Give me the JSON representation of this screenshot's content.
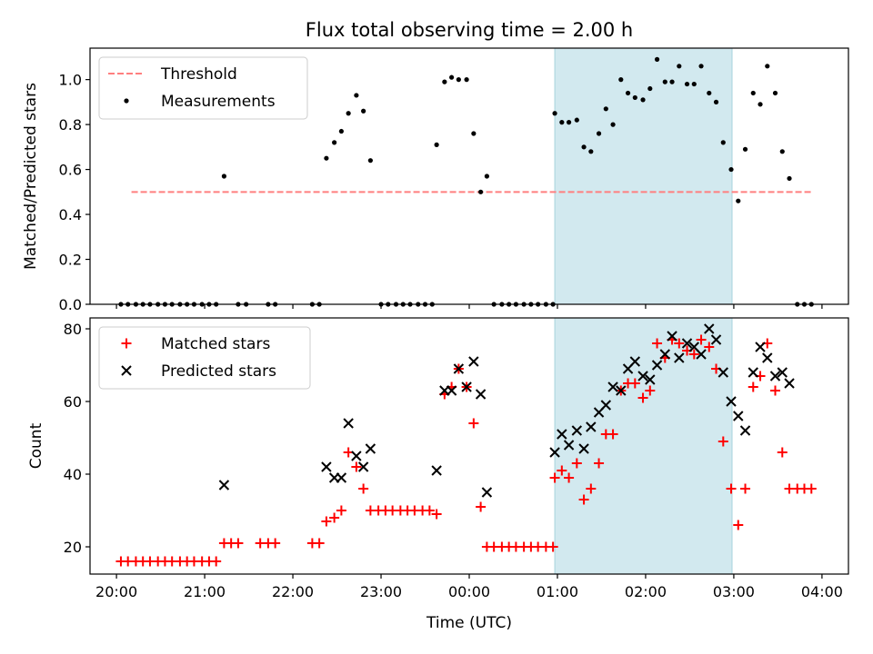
{
  "chart_data": [
    {
      "type": "scatter",
      "title": "Flux total observing time = 2.00 h",
      "ylabel": "Matched/Predicted stars",
      "xlabel": "",
      "x_unit": "hours since 20:00 UTC",
      "xlim": [
        -0.3,
        8.3
      ],
      "ylim": [
        0,
        1.14
      ],
      "yticks": [
        0.0,
        0.2,
        0.4,
        0.6,
        0.8,
        1.0
      ],
      "ytick_labels": [
        "0.0",
        "0.2",
        "0.4",
        "0.6",
        "0.8",
        "1.0"
      ],
      "highlight": {
        "x0": 4.97,
        "x1": 6.98,
        "color": "#d2e9ef"
      },
      "threshold": {
        "name": "Threshold",
        "value": 0.5,
        "x0": 0.17,
        "x1": 7.9,
        "color": "#ff7f7f"
      },
      "legend": {
        "position": "top-left",
        "entries": [
          "Threshold",
          "Measurements"
        ]
      },
      "series": [
        {
          "name": "Measurements",
          "color": "#000000",
          "points": [
            [
              0.05,
              0
            ],
            [
              0.13,
              0
            ],
            [
              0.22,
              0
            ],
            [
              0.3,
              0
            ],
            [
              0.38,
              0
            ],
            [
              0.47,
              0
            ],
            [
              0.55,
              0
            ],
            [
              0.63,
              0
            ],
            [
              0.72,
              0
            ],
            [
              0.8,
              0
            ],
            [
              0.88,
              0
            ],
            [
              0.97,
              0
            ],
            [
              1.05,
              0
            ],
            [
              1.13,
              0
            ],
            [
              1.22,
              0.57
            ],
            [
              1.38,
              0
            ],
            [
              1.47,
              0
            ],
            [
              1.72,
              0
            ],
            [
              1.8,
              0
            ],
            [
              2.22,
              0
            ],
            [
              2.3,
              0
            ],
            [
              2.38,
              0.65
            ],
            [
              2.47,
              0.72
            ],
            [
              2.55,
              0.77
            ],
            [
              2.63,
              0.85
            ],
            [
              2.72,
              0.93
            ],
            [
              2.8,
              0.86
            ],
            [
              2.88,
              0.64
            ],
            [
              3.0,
              0
            ],
            [
              3.08,
              0
            ],
            [
              3.17,
              0
            ],
            [
              3.25,
              0
            ],
            [
              3.33,
              0
            ],
            [
              3.42,
              0
            ],
            [
              3.5,
              0
            ],
            [
              3.58,
              0
            ],
            [
              3.63,
              0.71
            ],
            [
              3.72,
              0.99
            ],
            [
              3.8,
              1.01
            ],
            [
              3.88,
              1.0
            ],
            [
              3.97,
              1.0
            ],
            [
              4.05,
              0.76
            ],
            [
              4.13,
              0.5
            ],
            [
              4.2,
              0.57
            ],
            [
              4.28,
              0
            ],
            [
              4.37,
              0
            ],
            [
              4.45,
              0
            ],
            [
              4.53,
              0
            ],
            [
              4.62,
              0
            ],
            [
              4.7,
              0
            ],
            [
              4.78,
              0
            ],
            [
              4.87,
              0
            ],
            [
              4.95,
              0
            ],
            [
              4.97,
              0.85
            ],
            [
              5.05,
              0.81
            ],
            [
              5.13,
              0.81
            ],
            [
              5.22,
              0.82
            ],
            [
              5.3,
              0.7
            ],
            [
              5.38,
              0.68
            ],
            [
              5.47,
              0.76
            ],
            [
              5.55,
              0.87
            ],
            [
              5.63,
              0.8
            ],
            [
              5.72,
              1.0
            ],
            [
              5.8,
              0.94
            ],
            [
              5.88,
              0.92
            ],
            [
              5.97,
              0.91
            ],
            [
              6.05,
              0.96
            ],
            [
              6.13,
              1.09
            ],
            [
              6.22,
              0.99
            ],
            [
              6.3,
              0.99
            ],
            [
              6.38,
              1.06
            ],
            [
              6.47,
              0.98
            ],
            [
              6.55,
              0.98
            ],
            [
              6.63,
              1.06
            ],
            [
              6.72,
              0.94
            ],
            [
              6.8,
              0.9
            ],
            [
              6.88,
              0.72
            ],
            [
              6.97,
              0.6
            ],
            [
              7.05,
              0.46
            ],
            [
              7.13,
              0.69
            ],
            [
              7.22,
              0.94
            ],
            [
              7.3,
              0.89
            ],
            [
              7.38,
              1.06
            ],
            [
              7.47,
              0.94
            ],
            [
              7.55,
              0.68
            ],
            [
              7.63,
              0.56
            ],
            [
              7.72,
              0
            ],
            [
              7.8,
              0
            ],
            [
              7.88,
              0
            ]
          ]
        }
      ]
    },
    {
      "type": "scatter",
      "title": "",
      "ylabel": "Count",
      "xlabel": "Time (UTC)",
      "x_unit": "hours since 20:00 UTC",
      "xlim": [
        -0.3,
        8.3
      ],
      "ylim": [
        12.5,
        83
      ],
      "yticks": [
        20,
        40,
        60,
        80
      ],
      "ytick_labels": [
        "20",
        "40",
        "60",
        "80"
      ],
      "xticks": [
        0,
        1,
        2,
        3,
        4,
        5,
        6,
        7,
        8
      ],
      "xtick_labels": [
        "20:00",
        "21:00",
        "22:00",
        "23:00",
        "00:00",
        "01:00",
        "02:00",
        "03:00",
        "04:00"
      ],
      "highlight": {
        "x0": 4.97,
        "x1": 6.98,
        "color": "#d2e9ef"
      },
      "legend": {
        "position": "top-left",
        "entries": [
          "Matched stars",
          "Predicted stars"
        ]
      },
      "series": [
        {
          "name": "Matched stars",
          "marker": "plus",
          "color": "#ff0000",
          "points": [
            [
              0.05,
              16
            ],
            [
              0.13,
              16
            ],
            [
              0.22,
              16
            ],
            [
              0.3,
              16
            ],
            [
              0.38,
              16
            ],
            [
              0.47,
              16
            ],
            [
              0.55,
              16
            ],
            [
              0.63,
              16
            ],
            [
              0.72,
              16
            ],
            [
              0.8,
              16
            ],
            [
              0.88,
              16
            ],
            [
              0.97,
              16
            ],
            [
              1.05,
              16
            ],
            [
              1.13,
              16
            ],
            [
              1.22,
              21
            ],
            [
              1.3,
              21
            ],
            [
              1.38,
              21
            ],
            [
              1.63,
              21
            ],
            [
              1.72,
              21
            ],
            [
              1.8,
              21
            ],
            [
              2.22,
              21
            ],
            [
              2.3,
              21
            ],
            [
              2.38,
              27
            ],
            [
              2.47,
              28
            ],
            [
              2.55,
              30
            ],
            [
              2.63,
              46
            ],
            [
              2.72,
              42
            ],
            [
              2.8,
              36
            ],
            [
              2.88,
              30
            ],
            [
              2.97,
              30
            ],
            [
              3.05,
              30
            ],
            [
              3.13,
              30
            ],
            [
              3.22,
              30
            ],
            [
              3.3,
              30
            ],
            [
              3.38,
              30
            ],
            [
              3.47,
              30
            ],
            [
              3.55,
              30
            ],
            [
              3.63,
              29
            ],
            [
              3.72,
              62
            ],
            [
              3.8,
              64
            ],
            [
              3.88,
              69
            ],
            [
              3.97,
              64
            ],
            [
              4.05,
              54
            ],
            [
              4.13,
              31
            ],
            [
              4.2,
              20
            ],
            [
              4.28,
              20
            ],
            [
              4.37,
              20
            ],
            [
              4.45,
              20
            ],
            [
              4.53,
              20
            ],
            [
              4.62,
              20
            ],
            [
              4.7,
              20
            ],
            [
              4.78,
              20
            ],
            [
              4.87,
              20
            ],
            [
              4.95,
              20
            ],
            [
              4.97,
              39
            ],
            [
              5.05,
              41
            ],
            [
              5.13,
              39
            ],
            [
              5.22,
              43
            ],
            [
              5.3,
              33
            ],
            [
              5.38,
              36
            ],
            [
              5.47,
              43
            ],
            [
              5.55,
              51
            ],
            [
              5.63,
              51
            ],
            [
              5.72,
              63
            ],
            [
              5.8,
              65
            ],
            [
              5.88,
              65
            ],
            [
              5.97,
              61
            ],
            [
              6.05,
              63
            ],
            [
              6.13,
              76
            ],
            [
              6.22,
              72
            ],
            [
              6.3,
              77
            ],
            [
              6.38,
              76
            ],
            [
              6.47,
              74
            ],
            [
              6.55,
              73
            ],
            [
              6.63,
              77
            ],
            [
              6.72,
              75
            ],
            [
              6.8,
              69
            ],
            [
              6.88,
              49
            ],
            [
              6.97,
              36
            ],
            [
              7.05,
              26
            ],
            [
              7.13,
              36
            ],
            [
              7.22,
              64
            ],
            [
              7.3,
              67
            ],
            [
              7.38,
              76
            ],
            [
              7.47,
              63
            ],
            [
              7.55,
              46
            ],
            [
              7.63,
              36
            ],
            [
              7.72,
              36
            ],
            [
              7.8,
              36
            ],
            [
              7.88,
              36
            ]
          ]
        },
        {
          "name": "Predicted stars",
          "marker": "x",
          "color": "#000000",
          "points": [
            [
              1.22,
              37
            ],
            [
              2.38,
              42
            ],
            [
              2.47,
              39
            ],
            [
              2.55,
              39
            ],
            [
              2.63,
              54
            ],
            [
              2.72,
              45
            ],
            [
              2.8,
              42
            ],
            [
              2.88,
              47
            ],
            [
              3.63,
              41
            ],
            [
              3.72,
              63
            ],
            [
              3.8,
              63
            ],
            [
              3.88,
              69
            ],
            [
              3.97,
              64
            ],
            [
              4.05,
              71
            ],
            [
              4.13,
              62
            ],
            [
              4.2,
              35
            ],
            [
              4.97,
              46
            ],
            [
              5.05,
              51
            ],
            [
              5.13,
              48
            ],
            [
              5.22,
              52
            ],
            [
              5.3,
              47
            ],
            [
              5.38,
              53
            ],
            [
              5.47,
              57
            ],
            [
              5.55,
              59
            ],
            [
              5.63,
              64
            ],
            [
              5.72,
              63
            ],
            [
              5.8,
              69
            ],
            [
              5.88,
              71
            ],
            [
              5.97,
              67
            ],
            [
              6.05,
              66
            ],
            [
              6.13,
              70
            ],
            [
              6.22,
              73
            ],
            [
              6.3,
              78
            ],
            [
              6.38,
              72
            ],
            [
              6.47,
              76
            ],
            [
              6.55,
              75
            ],
            [
              6.63,
              73
            ],
            [
              6.72,
              80
            ],
            [
              6.8,
              77
            ],
            [
              6.88,
              68
            ],
            [
              6.97,
              60
            ],
            [
              7.05,
              56
            ],
            [
              7.13,
              52
            ],
            [
              7.22,
              68
            ],
            [
              7.3,
              75
            ],
            [
              7.38,
              72
            ],
            [
              7.47,
              67
            ],
            [
              7.55,
              68
            ],
            [
              7.63,
              65
            ]
          ]
        }
      ]
    }
  ]
}
